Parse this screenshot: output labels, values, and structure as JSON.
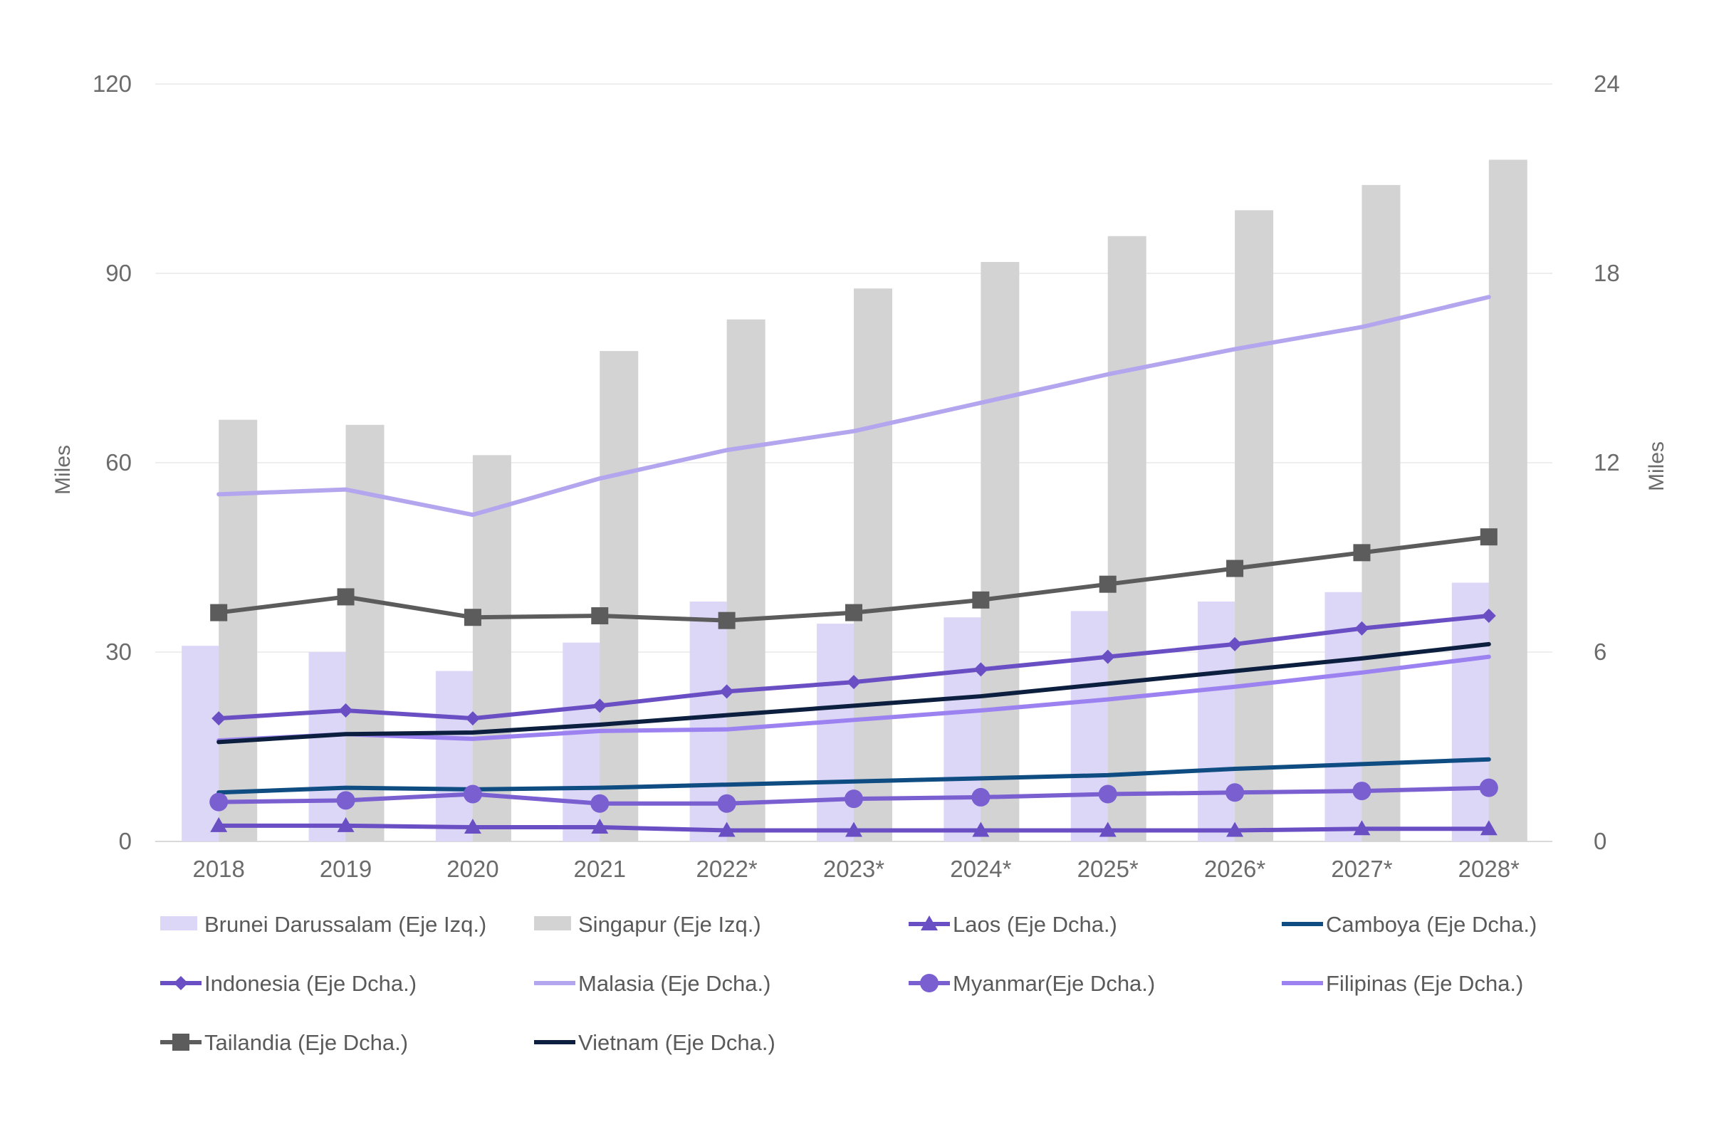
{
  "chart_data": {
    "type": "bar+line",
    "categories": [
      "2018",
      "2019",
      "2020",
      "2021",
      "2022*",
      "2023*",
      "2024*",
      "2025*",
      "2026*",
      "2027*",
      "2028*"
    ],
    "left_axis": {
      "title": "Miles",
      "ylim": [
        0,
        120
      ],
      "ticks": [
        0,
        30,
        60,
        90,
        120
      ]
    },
    "right_axis": {
      "title": "Miles",
      "ylim": [
        0,
        24
      ],
      "ticks": [
        0,
        6,
        12,
        18,
        24
      ]
    },
    "grid": true,
    "legend_position": "bottom",
    "colors": {
      "brunei": "#dcd6f7",
      "singapur": "#d3d3d3",
      "laos": "#6a4fc4",
      "camboya": "#0f4c81",
      "indonesia": "#6a4fc4",
      "malasia": "#b3a5ee",
      "myanmar": "#7a5fd0",
      "filipinas": "#9b82f0",
      "tailandia": "#5c5c5c",
      "vietnam": "#0c1f3f"
    },
    "series": [
      {
        "key": "brunei",
        "name": "Brunei Darussalam (Eje Izq.)",
        "type": "bar",
        "axis": "left",
        "values": [
          31,
          30,
          27,
          31.5,
          38,
          34.5,
          35.5,
          36.5,
          38,
          39.5,
          41
        ]
      },
      {
        "key": "singapur",
        "name": "Singapur  (Eje Izq.)",
        "type": "bar",
        "axis": "left",
        "values": [
          66.8,
          66,
          61.2,
          77.7,
          82.7,
          87.6,
          91.8,
          95.9,
          100,
          104,
          108
        ]
      },
      {
        "key": "laos",
        "name": "Laos (Eje Dcha.)",
        "type": "line",
        "marker": "triangle",
        "axis": "right",
        "values": [
          0.5,
          0.5,
          0.45,
          0.45,
          0.35,
          0.35,
          0.35,
          0.35,
          0.35,
          0.4,
          0.4
        ]
      },
      {
        "key": "camboya",
        "name": "Camboya (Eje Dcha.)",
        "type": "line",
        "marker": "none",
        "axis": "right",
        "values": [
          1.55,
          1.7,
          1.65,
          1.7,
          1.8,
          1.9,
          2.0,
          2.1,
          2.3,
          2.45,
          2.6
        ]
      },
      {
        "key": "indonesia",
        "name": "Indonesia (Eje Dcha.)",
        "type": "line",
        "marker": "diamond",
        "axis": "right",
        "values": [
          3.9,
          4.15,
          3.9,
          4.3,
          4.75,
          5.05,
          5.45,
          5.85,
          6.25,
          6.75,
          7.15
        ]
      },
      {
        "key": "malasia",
        "name": "Malasia (Eje Dcha.)",
        "type": "line",
        "marker": "none",
        "axis": "right",
        "values": [
          11.0,
          11.15,
          10.35,
          11.5,
          12.4,
          13.0,
          13.9,
          14.8,
          15.6,
          16.3,
          17.25
        ]
      },
      {
        "key": "myanmar",
        "name": "Myanmar(Eje Dcha.)",
        "type": "line",
        "marker": "circle",
        "axis": "right",
        "values": [
          1.25,
          1.3,
          1.5,
          1.2,
          1.2,
          1.35,
          1.4,
          1.5,
          1.55,
          1.6,
          1.7
        ]
      },
      {
        "key": "filipinas",
        "name": "Filipinas (Eje Dcha.)",
        "type": "line",
        "marker": "none",
        "axis": "right",
        "values": [
          3.2,
          3.4,
          3.25,
          3.5,
          3.55,
          3.85,
          4.15,
          4.5,
          4.9,
          5.35,
          5.85
        ]
      },
      {
        "key": "tailandia",
        "name": "Tailandia (Eje Dcha.)",
        "type": "line",
        "marker": "square",
        "axis": "right",
        "values": [
          7.25,
          7.75,
          7.1,
          7.15,
          7.0,
          7.25,
          7.65,
          8.15,
          8.65,
          9.15,
          9.65
        ]
      },
      {
        "key": "vietnam",
        "name": "Vietnam (Eje Dcha.)",
        "type": "line",
        "marker": "none",
        "axis": "right",
        "values": [
          3.15,
          3.4,
          3.45,
          3.7,
          4.0,
          4.3,
          4.6,
          5.0,
          5.4,
          5.8,
          6.25
        ]
      }
    ]
  }
}
